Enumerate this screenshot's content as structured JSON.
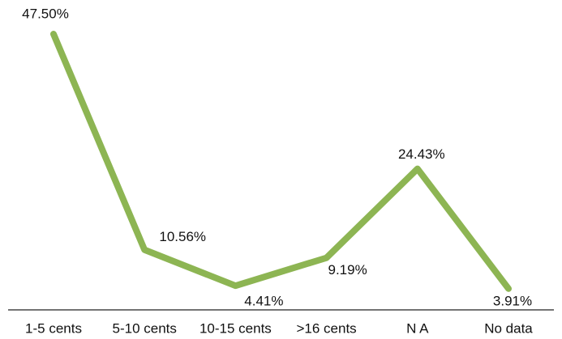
{
  "chart_data": {
    "type": "line",
    "categories": [
      "1-5 cents",
      "5-10 cents",
      "10-15 cents",
      ">16 cents",
      "N A",
      "No data"
    ],
    "series": [
      {
        "color": "#8db553",
        "values": [
          47.5,
          10.56,
          4.41,
          9.19,
          24.43,
          3.91
        ],
        "value_labels": [
          "47.50%",
          "10.56%",
          "4.41%",
          "9.19%",
          "24.43%",
          "3.91%"
        ]
      }
    ],
    "ylim": [
      0,
      50
    ]
  }
}
